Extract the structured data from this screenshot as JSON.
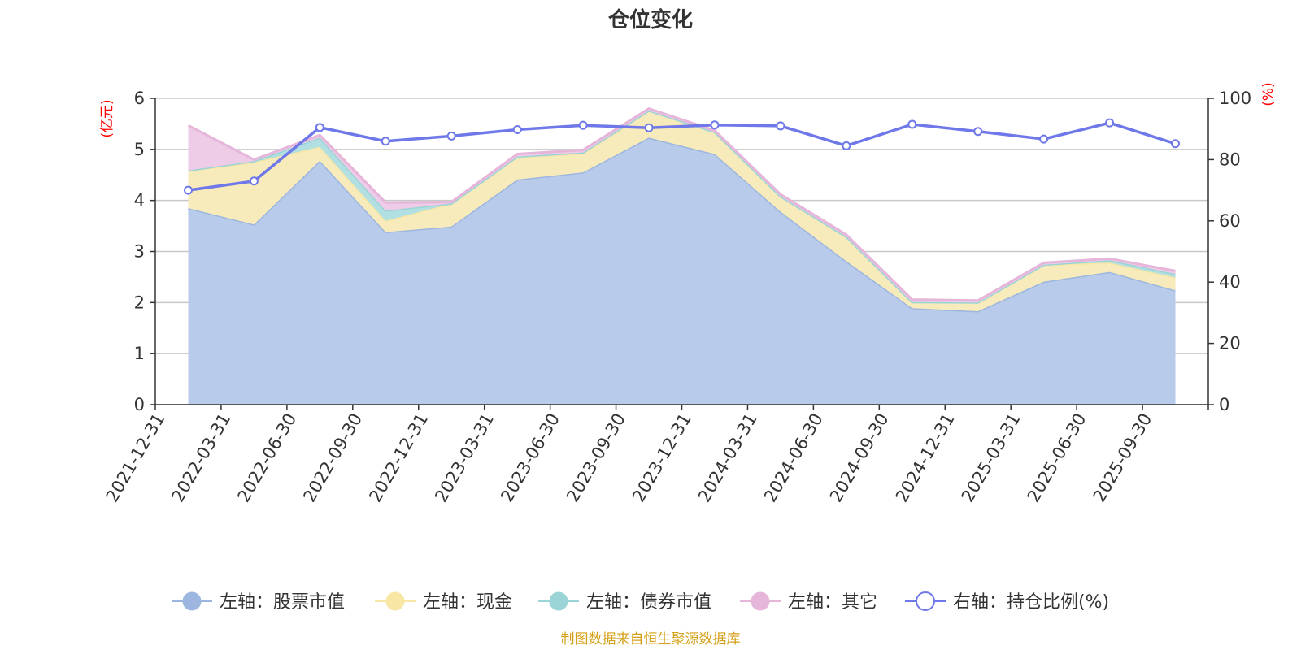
{
  "chart_data": {
    "type": "area",
    "title": "仓位变化",
    "source_note": "制图数据来自恒生聚源数据库",
    "left_axis": {
      "unit_label": "(亿元)",
      "ylim": [
        0,
        6
      ],
      "ticks": [
        "0",
        "1",
        "2",
        "3",
        "4",
        "5",
        "6"
      ]
    },
    "right_axis": {
      "unit_label": "(%)",
      "ylim": [
        0,
        100
      ],
      "ticks": [
        "0",
        "20",
        "40",
        "60",
        "80",
        "100"
      ]
    },
    "categories": [
      "2021-12-31",
      "2022-03-31",
      "2022-06-30",
      "2022-09-30",
      "2022-12-31",
      "2023-03-31",
      "2023-06-30",
      "2023-09-30",
      "2023-12-31",
      "2024-03-31",
      "2024-06-30",
      "2024-09-30",
      "2024-12-31",
      "2025-03-31",
      "2025-06-30",
      "2025-09-30"
    ],
    "stacked_series": [
      {
        "name": "股票市值",
        "legend": "左轴：股票市值",
        "axis": "left",
        "color": "#9cb6e0",
        "fill": "#b8cbea",
        "values": [
          3.85,
          3.53,
          4.78,
          3.38,
          3.49,
          4.41,
          4.55,
          5.23,
          4.91,
          3.78,
          2.81,
          1.89,
          1.83,
          2.41,
          2.6,
          2.24
        ]
      },
      {
        "name": "现金",
        "legend": "左轴：现金",
        "axis": "left",
        "color": "#f7e6a4",
        "fill": "#f8ebbb",
        "values": [
          0.73,
          1.22,
          0.27,
          0.22,
          0.45,
          0.44,
          0.37,
          0.53,
          0.43,
          0.3,
          0.48,
          0.12,
          0.17,
          0.33,
          0.18,
          0.25
        ]
      },
      {
        "name": "债券市值",
        "legend": "左轴：债券市值",
        "axis": "left",
        "color": "#9ad4d6",
        "fill": "#b2e0e2",
        "values": [
          0.01,
          0.02,
          0.18,
          0.2,
          0.0,
          0.01,
          0.02,
          0.0,
          0.0,
          0.0,
          0.0,
          0.0,
          0.0,
          0.0,
          0.05,
          0.07
        ]
      },
      {
        "name": "其它",
        "legend": "左轴：其它",
        "axis": "left",
        "color": "#e6b5da",
        "fill": "#eecbe6",
        "values": [
          0.88,
          0.03,
          0.05,
          0.16,
          0.03,
          0.05,
          0.05,
          0.04,
          0.03,
          0.04,
          0.04,
          0.05,
          0.04,
          0.04,
          0.03,
          0.06
        ]
      }
    ],
    "line_series": {
      "name": "持仓比例(%)",
      "legend": "右轴：持仓比例(%)",
      "axis": "right",
      "color": "#6f78e8",
      "values": [
        70.0,
        73.0,
        90.5,
        86.0,
        87.7,
        89.8,
        91.2,
        90.4,
        91.3,
        91.0,
        84.5,
        91.5,
        89.2,
        86.7,
        92.0,
        85.2
      ]
    }
  }
}
